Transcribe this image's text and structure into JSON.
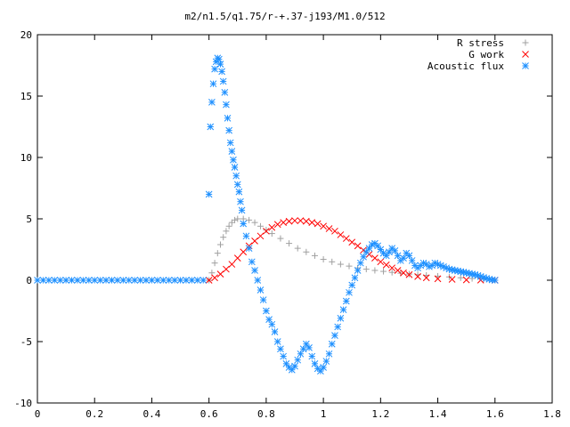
{
  "chart_data": {
    "type": "scatter",
    "title": "m2/n1.5/q1.75/r-+.37-j193/M1.0/512",
    "xlabel": "",
    "ylabel": "",
    "xlim": [
      0,
      1.8
    ],
    "ylim": [
      -10,
      20
    ],
    "xticks": [
      0,
      0.2,
      0.4,
      0.6,
      0.8,
      1,
      1.2,
      1.4,
      1.6,
      1.8
    ],
    "xtick_labels": [
      "0",
      "0.2",
      "0.4",
      "0.6",
      "0.8",
      "1",
      "1.2",
      "1.4",
      "1.6",
      "1.8"
    ],
    "yticks": [
      -10,
      -5,
      0,
      5,
      10,
      15,
      20
    ],
    "ytick_labels": [
      "-10",
      "-5",
      "0",
      "5",
      "10",
      "15",
      "20"
    ],
    "grid": false,
    "legend_position": "top-right",
    "series": [
      {
        "name": "R stress",
        "marker": "plus",
        "color": "#a0a0a0",
        "points": [
          [
            0.6,
            0.0
          ],
          [
            0.61,
            0.6
          ],
          [
            0.62,
            1.4
          ],
          [
            0.63,
            2.2
          ],
          [
            0.64,
            2.9
          ],
          [
            0.65,
            3.5
          ],
          [
            0.66,
            4.0
          ],
          [
            0.67,
            4.4
          ],
          [
            0.68,
            4.7
          ],
          [
            0.69,
            4.9
          ],
          [
            0.7,
            5.0
          ],
          [
            0.72,
            5.0
          ],
          [
            0.74,
            4.9
          ],
          [
            0.76,
            4.7
          ],
          [
            0.78,
            4.4
          ],
          [
            0.8,
            4.1
          ],
          [
            0.82,
            3.8
          ],
          [
            0.85,
            3.4
          ],
          [
            0.88,
            3.0
          ],
          [
            0.91,
            2.6
          ],
          [
            0.94,
            2.3
          ],
          [
            0.97,
            2.0
          ],
          [
            1.0,
            1.7
          ],
          [
            1.03,
            1.5
          ],
          [
            1.06,
            1.3
          ],
          [
            1.09,
            1.15
          ],
          [
            1.12,
            1.0
          ],
          [
            1.15,
            0.9
          ],
          [
            1.18,
            0.8
          ],
          [
            1.21,
            0.72
          ],
          [
            1.24,
            0.64
          ],
          [
            1.27,
            0.57
          ],
          [
            1.3,
            0.5
          ],
          [
            1.33,
            0.45
          ],
          [
            1.36,
            0.4
          ],
          [
            1.4,
            0.33
          ],
          [
            1.44,
            0.27
          ],
          [
            1.48,
            0.2
          ],
          [
            1.52,
            0.14
          ],
          [
            1.56,
            0.08
          ],
          [
            1.6,
            0.0
          ]
        ]
      },
      {
        "name": "G work",
        "marker": "cross",
        "color": "#ff0000",
        "points": [
          [
            0.6,
            0.0
          ],
          [
            0.62,
            0.2
          ],
          [
            0.64,
            0.5
          ],
          [
            0.66,
            0.9
          ],
          [
            0.68,
            1.3
          ],
          [
            0.7,
            1.8
          ],
          [
            0.72,
            2.3
          ],
          [
            0.74,
            2.8
          ],
          [
            0.76,
            3.2
          ],
          [
            0.78,
            3.6
          ],
          [
            0.8,
            4.0
          ],
          [
            0.82,
            4.3
          ],
          [
            0.84,
            4.55
          ],
          [
            0.86,
            4.7
          ],
          [
            0.88,
            4.8
          ],
          [
            0.9,
            4.85
          ],
          [
            0.92,
            4.85
          ],
          [
            0.94,
            4.8
          ],
          [
            0.96,
            4.7
          ],
          [
            0.98,
            4.6
          ],
          [
            1.0,
            4.4
          ],
          [
            1.02,
            4.2
          ],
          [
            1.04,
            4.0
          ],
          [
            1.06,
            3.7
          ],
          [
            1.08,
            3.4
          ],
          [
            1.1,
            3.1
          ],
          [
            1.12,
            2.8
          ],
          [
            1.14,
            2.45
          ],
          [
            1.16,
            2.1
          ],
          [
            1.18,
            1.8
          ],
          [
            1.2,
            1.5
          ],
          [
            1.22,
            1.25
          ],
          [
            1.24,
            1.0
          ],
          [
            1.26,
            0.8
          ],
          [
            1.28,
            0.6
          ],
          [
            1.3,
            0.45
          ],
          [
            1.33,
            0.3
          ],
          [
            1.36,
            0.2
          ],
          [
            1.4,
            0.12
          ],
          [
            1.45,
            0.07
          ],
          [
            1.5,
            0.03
          ],
          [
            1.55,
            0.01
          ],
          [
            1.6,
            0.0
          ]
        ]
      },
      {
        "name": "Acoustic flux",
        "marker": "star",
        "color": "#1e90ff",
        "points": [
          [
            0.0,
            0.0
          ],
          [
            0.02,
            0.0
          ],
          [
            0.04,
            0.0
          ],
          [
            0.06,
            0.0
          ],
          [
            0.08,
            0.0
          ],
          [
            0.1,
            0.0
          ],
          [
            0.12,
            0.0
          ],
          [
            0.14,
            0.0
          ],
          [
            0.16,
            0.0
          ],
          [
            0.18,
            0.0
          ],
          [
            0.2,
            0.0
          ],
          [
            0.22,
            0.0
          ],
          [
            0.24,
            0.0
          ],
          [
            0.26,
            0.0
          ],
          [
            0.28,
            0.0
          ],
          [
            0.3,
            0.0
          ],
          [
            0.32,
            0.0
          ],
          [
            0.34,
            0.0
          ],
          [
            0.36,
            0.0
          ],
          [
            0.38,
            0.0
          ],
          [
            0.4,
            0.0
          ],
          [
            0.42,
            0.0
          ],
          [
            0.44,
            0.0
          ],
          [
            0.46,
            0.0
          ],
          [
            0.48,
            0.0
          ],
          [
            0.5,
            0.0
          ],
          [
            0.52,
            0.0
          ],
          [
            0.54,
            0.0
          ],
          [
            0.56,
            0.0
          ],
          [
            0.58,
            0.0
          ],
          [
            0.6,
            7.0
          ],
          [
            0.605,
            12.5
          ],
          [
            0.61,
            14.5
          ],
          [
            0.615,
            16.0
          ],
          [
            0.62,
            17.2
          ],
          [
            0.625,
            17.8
          ],
          [
            0.63,
            18.1
          ],
          [
            0.635,
            18.0
          ],
          [
            0.64,
            17.6
          ],
          [
            0.645,
            17.0
          ],
          [
            0.65,
            16.2
          ],
          [
            0.655,
            15.3
          ],
          [
            0.66,
            14.3
          ],
          [
            0.665,
            13.2
          ],
          [
            0.67,
            12.2
          ],
          [
            0.675,
            11.2
          ],
          [
            0.68,
            10.5
          ],
          [
            0.685,
            9.8
          ],
          [
            0.69,
            9.2
          ],
          [
            0.695,
            8.5
          ],
          [
            0.7,
            7.8
          ],
          [
            0.705,
            7.2
          ],
          [
            0.71,
            6.4
          ],
          [
            0.715,
            5.7
          ],
          [
            0.72,
            4.6
          ],
          [
            0.73,
            3.6
          ],
          [
            0.74,
            2.6
          ],
          [
            0.75,
            1.5
          ],
          [
            0.76,
            0.8
          ],
          [
            0.77,
            0.0
          ],
          [
            0.78,
            -0.8
          ],
          [
            0.79,
            -1.6
          ],
          [
            0.8,
            -2.5
          ],
          [
            0.81,
            -3.2
          ],
          [
            0.82,
            -3.6
          ],
          [
            0.83,
            -4.2
          ],
          [
            0.84,
            -5.0
          ],
          [
            0.85,
            -5.6
          ],
          [
            0.86,
            -6.2
          ],
          [
            0.87,
            -6.8
          ],
          [
            0.88,
            -7.1
          ],
          [
            0.89,
            -7.3
          ],
          [
            0.9,
            -7.0
          ],
          [
            0.91,
            -6.5
          ],
          [
            0.92,
            -6.0
          ],
          [
            0.93,
            -5.6
          ],
          [
            0.94,
            -5.2
          ],
          [
            0.95,
            -5.5
          ],
          [
            0.96,
            -6.2
          ],
          [
            0.97,
            -6.8
          ],
          [
            0.98,
            -7.2
          ],
          [
            0.99,
            -7.4
          ],
          [
            1.0,
            -7.1
          ],
          [
            1.01,
            -6.6
          ],
          [
            1.02,
            -6.0
          ],
          [
            1.03,
            -5.2
          ],
          [
            1.04,
            -4.5
          ],
          [
            1.05,
            -3.8
          ],
          [
            1.06,
            -3.1
          ],
          [
            1.07,
            -2.4
          ],
          [
            1.08,
            -1.7
          ],
          [
            1.09,
            -1.0
          ],
          [
            1.1,
            -0.4
          ],
          [
            1.11,
            0.2
          ],
          [
            1.12,
            0.8
          ],
          [
            1.13,
            1.4
          ],
          [
            1.14,
            1.9
          ],
          [
            1.15,
            2.3
          ],
          [
            1.16,
            2.6
          ],
          [
            1.17,
            2.9
          ],
          [
            1.18,
            3.0
          ],
          [
            1.19,
            2.8
          ],
          [
            1.2,
            2.5
          ],
          [
            1.21,
            2.2
          ],
          [
            1.22,
            2.0
          ],
          [
            1.23,
            2.3
          ],
          [
            1.24,
            2.6
          ],
          [
            1.25,
            2.4
          ],
          [
            1.26,
            2.0
          ],
          [
            1.27,
            1.6
          ],
          [
            1.28,
            1.8
          ],
          [
            1.29,
            2.2
          ],
          [
            1.3,
            2.0
          ],
          [
            1.31,
            1.6
          ],
          [
            1.32,
            1.2
          ],
          [
            1.33,
            1.0
          ],
          [
            1.34,
            1.2
          ],
          [
            1.35,
            1.4
          ],
          [
            1.36,
            1.3
          ],
          [
            1.37,
            1.1
          ],
          [
            1.38,
            1.2
          ],
          [
            1.39,
            1.4
          ],
          [
            1.4,
            1.3
          ],
          [
            1.41,
            1.2
          ],
          [
            1.42,
            1.1
          ],
          [
            1.43,
            1.0
          ],
          [
            1.44,
            0.9
          ],
          [
            1.45,
            0.85
          ],
          [
            1.46,
            0.8
          ],
          [
            1.47,
            0.75
          ],
          [
            1.48,
            0.7
          ],
          [
            1.49,
            0.65
          ],
          [
            1.5,
            0.6
          ],
          [
            1.51,
            0.55
          ],
          [
            1.52,
            0.5
          ],
          [
            1.53,
            0.45
          ],
          [
            1.54,
            0.38
          ],
          [
            1.55,
            0.3
          ],
          [
            1.56,
            0.22
          ],
          [
            1.57,
            0.15
          ],
          [
            1.58,
            0.08
          ],
          [
            1.59,
            0.03
          ],
          [
            1.6,
            0.0
          ]
        ]
      }
    ]
  }
}
